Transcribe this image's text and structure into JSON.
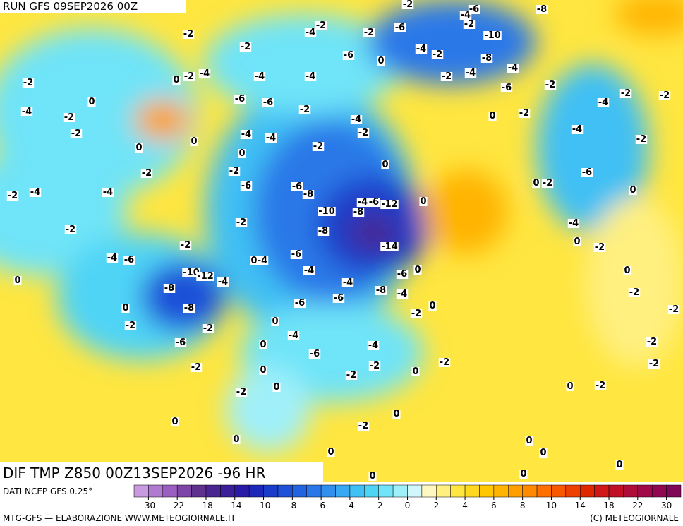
{
  "header": {
    "run": "RUN GFS 09SEP2026 00Z",
    "field": "DIF TMP Z850 00Z13SEP2026 -96 HR"
  },
  "map": {
    "contour_labels": [
      "-2",
      "-2",
      "-2",
      "-4",
      "-2",
      "-6",
      "-2",
      "-4",
      "-6",
      "-8",
      "-2",
      "-10",
      "-8",
      "-4",
      "-2",
      "-6",
      "0",
      "-2",
      "0",
      "-2",
      "-4",
      "-4",
      "-4",
      "-4",
      "-4",
      "-2",
      "-6",
      "-2",
      "-2",
      "-2",
      "-4",
      "-4",
      "0",
      "-2",
      "-2",
      "-6",
      "-6",
      "-2",
      "-4",
      "-2",
      "0",
      "-2",
      "-4",
      "-2",
      "-4",
      "-4",
      "-2",
      "0",
      "0",
      "0",
      "-2",
      "-2",
      "-6",
      "0",
      "-2",
      "-4",
      "-4",
      "-6",
      "-6",
      "-8",
      "0",
      "-2",
      "0",
      "-4",
      "-6",
      "-12",
      "0",
      "-10",
      "-8",
      "-2",
      "-2",
      "-8",
      "-4",
      "0",
      "-2",
      "-14",
      "-2",
      "-4",
      "-6",
      "-6",
      "0",
      "-4",
      "-4",
      "-6",
      "0",
      "-10",
      "-12",
      "-4",
      "0",
      "0",
      "-8",
      "-4",
      "-8",
      "-4",
      "-2",
      "-6",
      "-6",
      "0",
      "-8",
      "-2",
      "0",
      "-2",
      "-2",
      "0",
      "-2",
      "-4",
      "-6",
      "0",
      "-6",
      "-4",
      "-2",
      "-2",
      "-2",
      "0",
      "-2",
      "-2",
      "-2",
      "0",
      "0",
      "-2",
      "0",
      "-2",
      "0",
      "0",
      "-2",
      "0",
      "0",
      "0",
      "0",
      "0",
      "0",
      "0"
    ]
  },
  "colorbar": {
    "source": "DATI NCEP GFS 0.25°",
    "colors": [
      "#c89be0",
      "#b07ad0",
      "#9a5fc0",
      "#7d45a8",
      "#60308f",
      "#4a2590",
      "#3a1e9a",
      "#2a1aa8",
      "#1e28b8",
      "#1a3cc8",
      "#1e50d8",
      "#2264e0",
      "#2a78e8",
      "#3090ee",
      "#38a8f2",
      "#40c0f4",
      "#50d4f6",
      "#70e4f8",
      "#a0f0fa",
      "#d0f8fc",
      "#fff8c0",
      "#fff080",
      "#ffe640",
      "#ffd820",
      "#ffc800",
      "#ffb400",
      "#ffa000",
      "#ff8a00",
      "#ff7000",
      "#f85800",
      "#ee4000",
      "#e02800",
      "#d01818",
      "#c01028",
      "#b00c38",
      "#a00a48",
      "#900850",
      "#800658"
    ],
    "ticks": [
      -30,
      -22,
      -18,
      -14,
      -10,
      -8,
      -6,
      -4,
      -2,
      0,
      2,
      4,
      6,
      8,
      10,
      14,
      18,
      22,
      30
    ]
  },
  "footer": {
    "left": "MTG-GFS — ELABORAZIONE WWW.METEOGIORNALE.IT",
    "right": "(C) METEOGIORNALE"
  }
}
